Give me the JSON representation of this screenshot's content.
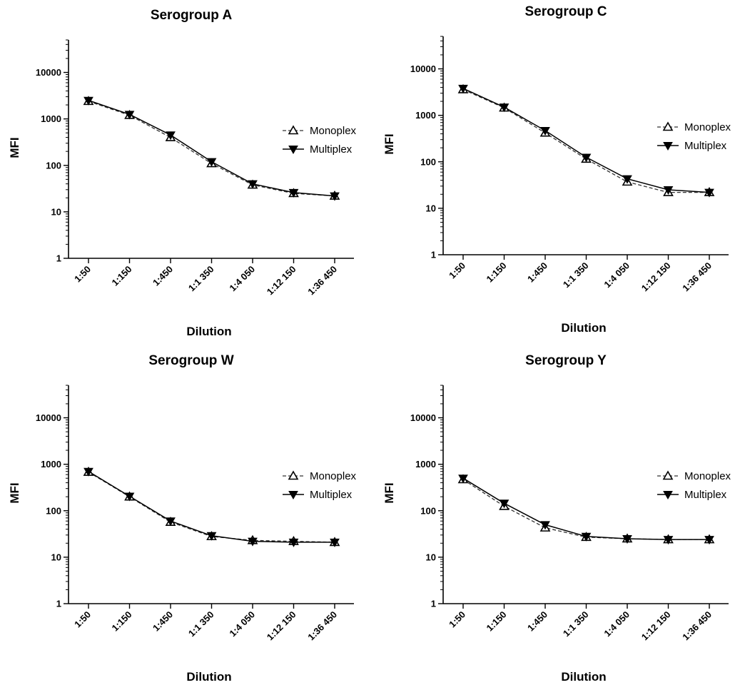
{
  "chart_data": [
    {
      "type": "line",
      "title": "Serogroup  A",
      "xlabel": "Dilution",
      "ylabel": "MFI",
      "yscale": "log",
      "ylim": [
        1,
        50000
      ],
      "yticks": [
        "1",
        "10",
        "100",
        "1000",
        "10000"
      ],
      "categories": [
        "1:50",
        "1:150",
        "1:450",
        "1:1 350",
        "1:4 050",
        "1:12 150",
        "1:36 450"
      ],
      "legend_position": "right",
      "series": [
        {
          "name": "Monoplex",
          "marker": "open-triangle-up",
          "line": "dashed",
          "values": [
            2400,
            1200,
            400,
            110,
            38,
            25,
            22
          ]
        },
        {
          "name": "Multiplex",
          "marker": "filled-triangle-down",
          "line": "solid",
          "values": [
            2500,
            1250,
            450,
            120,
            40,
            26,
            22
          ]
        }
      ]
    },
    {
      "type": "line",
      "title": "Serogroup C",
      "xlabel": "Dilution",
      "ylabel": "MFI",
      "yscale": "log",
      "ylim": [
        1,
        50000
      ],
      "yticks": [
        "1",
        "10",
        "100",
        "1000",
        "10000"
      ],
      "categories": [
        "1:50",
        "1:150",
        "1:450",
        "1:1 350",
        "1:4 050",
        "1:12 150",
        "1:36 450"
      ],
      "legend_position": "right",
      "series": [
        {
          "name": "Monoplex",
          "marker": "open-triangle-up",
          "line": "dashed",
          "values": [
            3600,
            1450,
            420,
            115,
            37,
            22,
            22
          ]
        },
        {
          "name": "Multiplex",
          "marker": "filled-triangle-down",
          "line": "solid",
          "values": [
            3800,
            1500,
            470,
            125,
            43,
            25,
            22
          ]
        }
      ]
    },
    {
      "type": "line",
      "title": "Serogroup W",
      "xlabel": "Dilution",
      "ylabel": "MFI",
      "yscale": "log",
      "ylim": [
        1,
        50000
      ],
      "yticks": [
        "1",
        "10",
        "100",
        "1000",
        "10000"
      ],
      "categories": [
        "1:50",
        "1:150",
        "1:450",
        "1:1 350",
        "1:4 050",
        "1:12 150",
        "1:36 450"
      ],
      "legend_position": "right",
      "series": [
        {
          "name": "Monoplex",
          "marker": "open-triangle-up",
          "line": "dashed",
          "values": [
            680,
            200,
            57,
            28,
            23,
            22,
            21
          ]
        },
        {
          "name": "Multiplex",
          "marker": "filled-triangle-down",
          "line": "solid",
          "values": [
            700,
            205,
            60,
            29,
            22,
            21,
            21
          ]
        }
      ]
    },
    {
      "type": "line",
      "title": "Serogroup Y",
      "xlabel": "Dilution",
      "ylabel": "MFI",
      "yscale": "log",
      "ylim": [
        1,
        50000
      ],
      "yticks": [
        "1",
        "10",
        "100",
        "1000",
        "10000"
      ],
      "categories": [
        "1:50",
        "1:150",
        "1:450",
        "1:1 350",
        "1:4 050",
        "1:12 150",
        "1:36 450"
      ],
      "legend_position": "right",
      "series": [
        {
          "name": "Monoplex",
          "marker": "open-triangle-up",
          "line": "dashed",
          "values": [
            470,
            125,
            43,
            27,
            25,
            24,
            24
          ]
        },
        {
          "name": "Multiplex",
          "marker": "filled-triangle-down",
          "line": "solid",
          "values": [
            500,
            145,
            50,
            28,
            25,
            24,
            24
          ]
        }
      ]
    }
  ]
}
